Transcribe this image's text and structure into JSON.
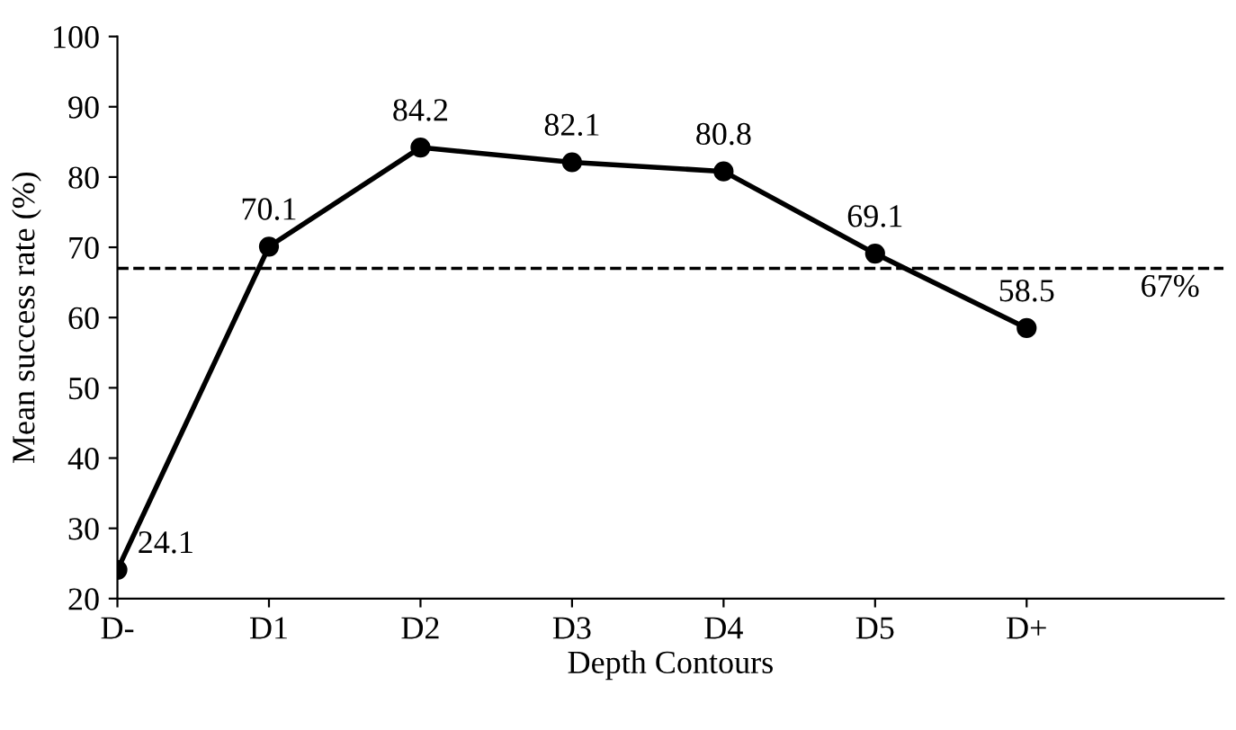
{
  "chart_data": {
    "type": "line",
    "xlabel": "Depth Contours",
    "ylabel": "Mean success rate (%)",
    "categories": [
      "D-",
      "D1",
      "D2",
      "D3",
      "D4",
      "D5",
      "D+"
    ],
    "series": [
      {
        "color": "#000000",
        "values": [
          24.1,
          70.1,
          84.2,
          82.1,
          80.8,
          69.1,
          58.5
        ]
      }
    ],
    "data_labels": true,
    "marker": "circle",
    "line_style": "solid",
    "grid": false,
    "legend": false,
    "ylim": [
      20,
      100
    ],
    "yticks": [
      20,
      30,
      40,
      50,
      60,
      70,
      80,
      90,
      100
    ],
    "ref_lines": [
      {
        "axis": "y",
        "value": 67,
        "label": "67%",
        "color": "#000000",
        "line_style": "dashed"
      }
    ]
  }
}
